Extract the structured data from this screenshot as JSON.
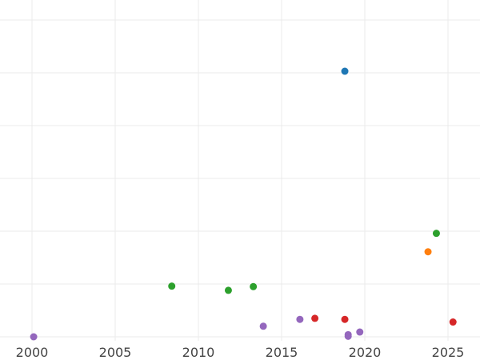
{
  "chart_data": {
    "type": "scatter",
    "title": "",
    "xlabel": "",
    "ylabel": "",
    "xlim": [
      1999.5,
      2027
    ],
    "ylim": [
      -1,
      63
    ],
    "grid": true,
    "x_ticks": [
      2000,
      2005,
      2010,
      2015,
      2020,
      2025
    ],
    "x_tick_labels": [
      "2000",
      "2005",
      "2010",
      "2015",
      "2020",
      "2025"
    ],
    "y_gridlines": [
      0,
      10,
      20,
      30,
      40,
      50,
      60
    ],
    "series": [
      {
        "color": "#1f77b4",
        "points": [
          {
            "x": 2018.8,
            "y": 50.3
          }
        ]
      },
      {
        "color": "#ff7f0e",
        "points": [
          {
            "x": 2023.8,
            "y": 16.1
          }
        ]
      },
      {
        "color": "#2ca02c",
        "points": [
          {
            "x": 2008.4,
            "y": 9.6
          },
          {
            "x": 2011.8,
            "y": 8.8
          },
          {
            "x": 2013.3,
            "y": 9.5
          },
          {
            "x": 2024.3,
            "y": 19.6
          }
        ]
      },
      {
        "color": "#d62728",
        "points": [
          {
            "x": 2017.0,
            "y": 3.5
          },
          {
            "x": 2018.8,
            "y": 3.3
          },
          {
            "x": 2025.3,
            "y": 2.8
          }
        ]
      },
      {
        "color": "#9467bd",
        "points": [
          {
            "x": 2000.1,
            "y": 0.0
          },
          {
            "x": 2013.9,
            "y": 2.0
          },
          {
            "x": 2016.1,
            "y": 3.3
          },
          {
            "x": 2019.0,
            "y": 0.4
          },
          {
            "x": 2019.0,
            "y": 0.1
          },
          {
            "x": 2019.7,
            "y": 0.9
          }
        ]
      }
    ]
  }
}
